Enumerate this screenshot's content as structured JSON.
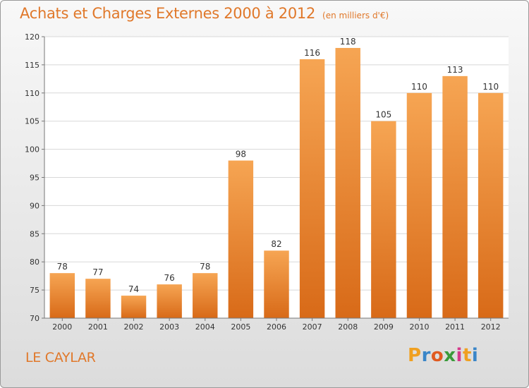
{
  "chart_data": {
    "type": "bar",
    "title": "Achats et Charges Externes 2000 à 2012",
    "subtitle": "(en milliers d'€)",
    "categories": [
      "2000",
      "2001",
      "2002",
      "2003",
      "2004",
      "2005",
      "2006",
      "2007",
      "2008",
      "2009",
      "2010",
      "2011",
      "2012"
    ],
    "values": [
      78,
      77,
      74,
      76,
      78,
      98,
      82,
      116,
      118,
      105,
      110,
      113,
      110
    ],
    "ylim": [
      70,
      120
    ],
    "yticks": [
      70,
      75,
      80,
      85,
      90,
      95,
      100,
      105,
      110,
      115,
      120
    ],
    "grid": true,
    "bar_color": "#e8832a",
    "xlabel": "",
    "ylabel": ""
  },
  "footer": {
    "place": "LE CAYLAR"
  },
  "logo": {
    "letters": [
      "P",
      "r",
      "o",
      "x",
      "i",
      "t",
      "i"
    ],
    "colors": [
      "#f0a020",
      "#3a86c8",
      "#e05a20",
      "#3a9a3a",
      "#d43a8a",
      "#f0a020",
      "#3a86c8"
    ]
  }
}
